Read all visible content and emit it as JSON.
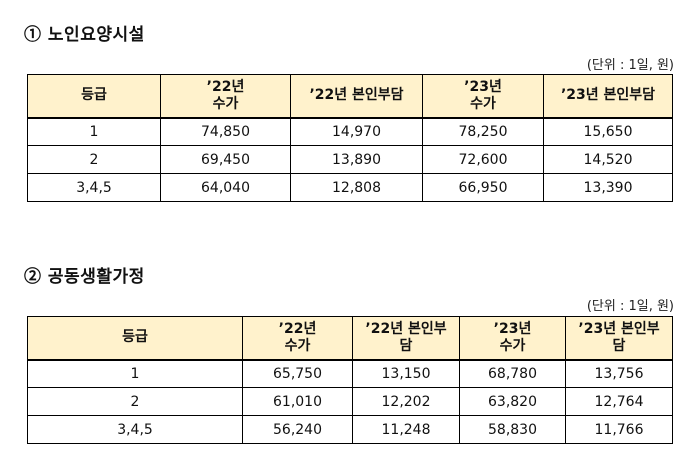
{
  "unit_note": "(단위 : 1일, 원)",
  "section1": {
    "title": "① 노인요양시설",
    "headers": [
      "등급",
      "’22년\n수가",
      "’22년 본인부담",
      "’23년\n수가",
      "’23년 본인부담"
    ],
    "rows": [
      [
        "1",
        "74,850",
        "14,970",
        "78,250",
        "15,650"
      ],
      [
        "2",
        "69,450",
        "13,890",
        "72,600",
        "14,520"
      ],
      [
        "3,4,5",
        "64,040",
        "12,808",
        "66,950",
        "13,390"
      ]
    ]
  },
  "section2": {
    "title": "② 공동생활가정",
    "headers": [
      "등급",
      "’22년\n수가",
      "’22년 본인부\n담",
      "’23년\n수가",
      "’23년 본인부\n담"
    ],
    "rows": [
      [
        "1",
        "65,750",
        "13,150",
        "68,780",
        "13,756"
      ],
      [
        "2",
        "61,010",
        "12,202",
        "63,820",
        "12,764"
      ],
      [
        "3,4,5",
        "56,240",
        "11,248",
        "58,830",
        "11,766"
      ]
    ]
  }
}
